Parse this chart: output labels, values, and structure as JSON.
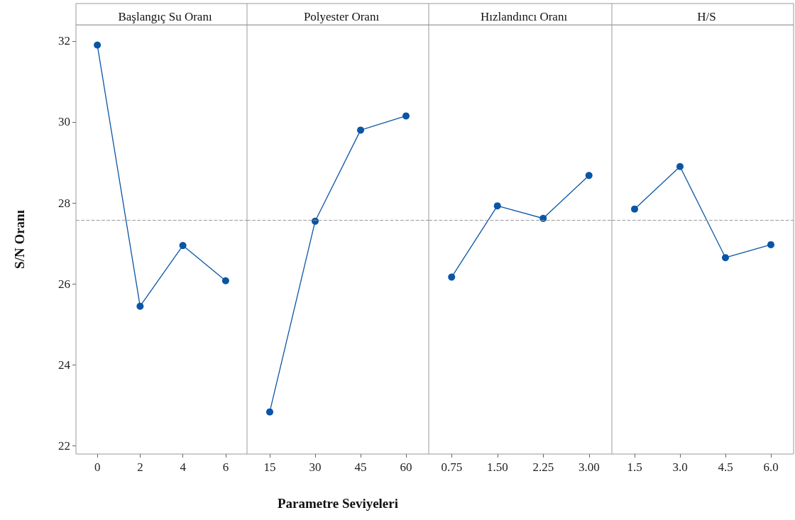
{
  "chart_data": [
    {
      "type": "line",
      "title": "Başlangıç Su Oranı",
      "ylabel": "S/N Oranı",
      "categories": [
        "0",
        "2",
        "4",
        "6"
      ],
      "values": [
        31.9,
        25.45,
        26.95,
        26.08
      ],
      "color": "#0a55a5",
      "marker": "circle",
      "ylim": [
        21.8,
        32.4
      ],
      "yticks": [
        22,
        24,
        26,
        28,
        30,
        32
      ],
      "ref_lines": [
        {
          "axis": "y",
          "value": 27.57,
          "color": "#999999",
          "line_style": "dashed"
        }
      ]
    },
    {
      "type": "line",
      "title": "Polyester Oranı",
      "xlabel": "Parametre Seviyeleri",
      "categories": [
        "15",
        "30",
        "45",
        "60"
      ],
      "values": [
        22.84,
        27.55,
        29.8,
        30.15
      ],
      "color": "#0a55a5",
      "marker": "circle",
      "ylim": [
        21.8,
        32.4
      ],
      "yticks": [
        22,
        24,
        26,
        28,
        30,
        32
      ],
      "tick_labels": "x",
      "ref_lines": [
        {
          "axis": "y",
          "value": 27.57,
          "color": "#999999",
          "line_style": "dashed"
        }
      ]
    },
    {
      "type": "line",
      "title": "Hızlandıncı Oranı",
      "categories": [
        "0.75",
        "1.50",
        "2.25",
        "3.00"
      ],
      "values": [
        26.17,
        27.93,
        27.62,
        28.68
      ],
      "color": "#0a55a5",
      "marker": "circle",
      "ylim": [
        21.8,
        32.4
      ],
      "yticks": [
        22,
        24,
        26,
        28,
        30,
        32
      ],
      "tick_labels": "x",
      "ref_lines": [
        {
          "axis": "y",
          "value": 27.57,
          "color": "#999999",
          "line_style": "dashed"
        }
      ]
    },
    {
      "type": "line",
      "title": "H/S",
      "categories": [
        "1.5",
        "3.0",
        "4.5",
        "6.0"
      ],
      "values": [
        27.85,
        28.9,
        26.65,
        26.97
      ],
      "color": "#0a55a5",
      "marker": "circle",
      "ylim": [
        21.8,
        32.4
      ],
      "yticks": [
        22,
        24,
        26,
        28,
        30,
        32
      ],
      "tick_labels": "x",
      "ref_lines": [
        {
          "axis": "y",
          "value": 27.57,
          "color": "#999999",
          "line_style": "dashed"
        }
      ]
    }
  ]
}
